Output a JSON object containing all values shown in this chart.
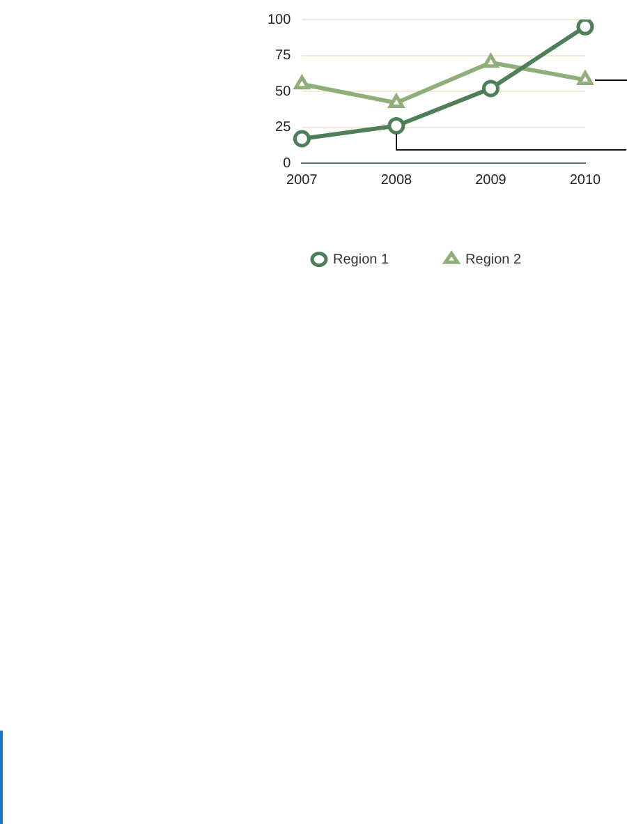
{
  "chart_data": {
    "type": "line",
    "categories": [
      "2007",
      "2008",
      "2009",
      "2010"
    ],
    "series": [
      {
        "name": "Region 1",
        "color": "#4f7f58",
        "marker": "circle",
        "values": [
          17,
          26,
          52,
          95
        ]
      },
      {
        "name": "Region 2",
        "color": "#8fae7a",
        "marker": "triangle",
        "values": [
          55,
          42,
          70,
          58
        ]
      }
    ],
    "ylim": [
      0,
      100
    ],
    "yticks": [
      0,
      25,
      50,
      75,
      100
    ],
    "grid": "y",
    "legend": "bottom"
  }
}
